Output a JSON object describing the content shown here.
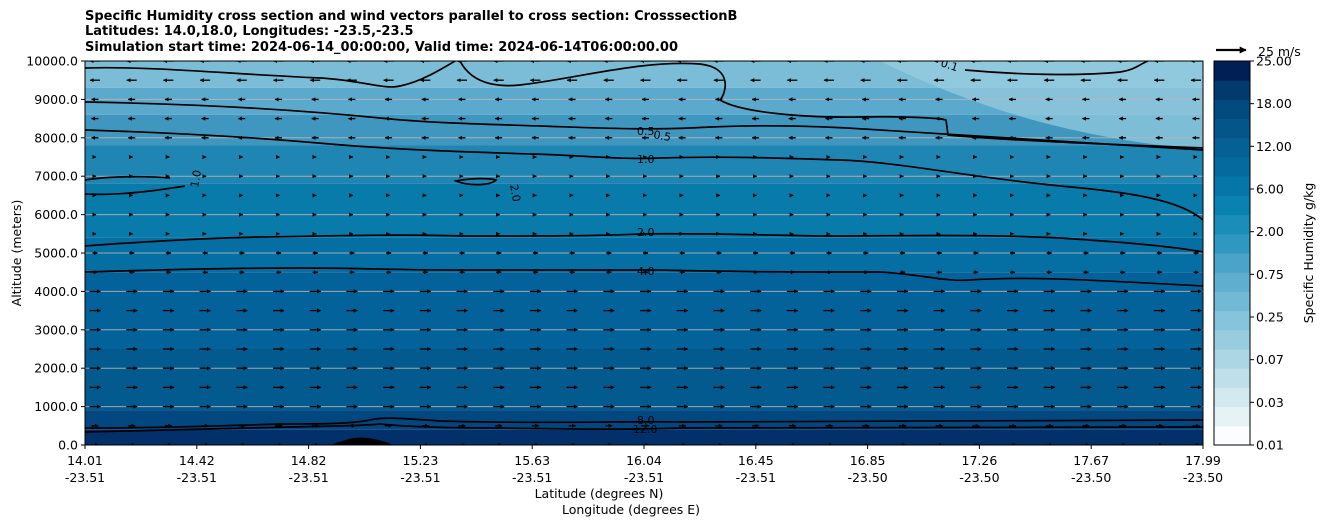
{
  "title_lines": [
    "Specific Humidity cross section and wind vectors parallel to cross section: CrosssectionB",
    "Latitudes: 14.0,18.0, Longitudes: -23.5,-23.5",
    "Simulation start time: 2024-06-14_00:00:00, Valid time: 2024-06-14T06:00:00.00"
  ],
  "chart_data": {
    "type": "heatmap",
    "xlabel": "Latitude (degrees N)",
    "xlabel2": "Longitude (degrees E)",
    "ylabel": "Altitude (meters)",
    "ylim": [
      0,
      10000
    ],
    "y_ticks": [
      "0.0",
      "1000.0",
      "2000.0",
      "3000.0",
      "4000.0",
      "5000.0",
      "6000.0",
      "7000.0",
      "8000.0",
      "9000.0",
      "10000.0"
    ],
    "y_tick_values": [
      0,
      1000,
      2000,
      3000,
      4000,
      5000,
      6000,
      7000,
      8000,
      9000,
      10000
    ],
    "x_ticks_lat": [
      "14.01",
      "14.42",
      "14.82",
      "15.23",
      "15.63",
      "16.04",
      "16.45",
      "16.85",
      "17.26",
      "17.67",
      "17.99"
    ],
    "x_ticks_lon": [
      "-23.51",
      "-23.51",
      "-23.51",
      "-23.51",
      "-23.51",
      "-23.51",
      "-23.51",
      "-23.50",
      "-23.50",
      "-23.50",
      "-23.50"
    ],
    "grid": "horizontal",
    "colorbar": {
      "label": "Specific Humidity g/kg",
      "tick_labels": [
        "0.01",
        "0.03",
        "0.07",
        "0.25",
        "0.75",
        "2.00",
        "6.00",
        "12.00",
        "18.00",
        "25.00"
      ],
      "levels": 20,
      "colormap": "PuBu"
    },
    "contour_labels": [
      "0.1",
      "0.5",
      "0.5",
      "1.0",
      "1.0",
      "2.0",
      "2.0",
      "4.0",
      "8.0",
      "12.0"
    ],
    "quiver_key": "25 m/s",
    "contours": [
      {
        "level": "0.1",
        "y_start": 9760,
        "y_end": 9900
      },
      {
        "level": "0.5",
        "y_start": 8880,
        "y_end": 7700
      },
      {
        "level": "1.0",
        "y_start": 6950,
        "y_end": 5850
      },
      {
        "level": "2.0",
        "y_start": 5200,
        "y_end": 5050
      },
      {
        "level": "4.0",
        "y_start": 4600,
        "y_end": 4150
      },
      {
        "level": "8.0",
        "y_start": 570,
        "y_end": 690
      },
      {
        "level": "12.0",
        "y_start": 380,
        "y_end": 420
      }
    ]
  }
}
